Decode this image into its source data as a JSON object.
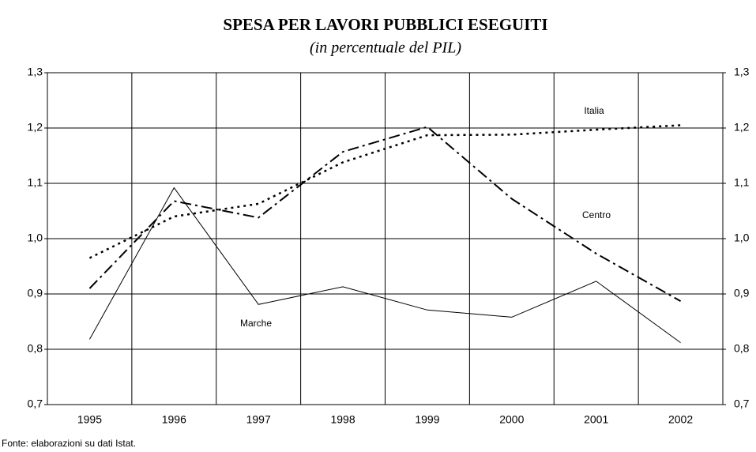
{
  "chart_data": {
    "type": "line",
    "title": "SPESA PER LAVORI PUBBLICI ESEGUITI",
    "subtitle": "(in percentuale del PIL)",
    "source": "Fonte: elaborazioni su dati Istat.",
    "categories": [
      "1995",
      "1996",
      "1997",
      "1998",
      "1999",
      "2000",
      "2001",
      "2002"
    ],
    "series": [
      {
        "name": "Italia",
        "color": "#000000",
        "values": [
          0.965,
          1.04,
          1.063,
          1.138,
          1.187,
          1.188,
          1.197,
          1.205
        ]
      },
      {
        "name": "Centro",
        "color": "#000000",
        "values": [
          0.91,
          1.068,
          1.038,
          1.157,
          1.202,
          1.072,
          0.973,
          0.887
        ]
      },
      {
        "name": "Marche",
        "color": "#000000",
        "values": [
          0.818,
          1.092,
          0.881,
          0.913,
          0.871,
          0.858,
          0.923,
          0.812
        ]
      }
    ],
    "ylim": [
      0.7,
      1.3
    ],
    "yticks": [
      {
        "value": 0.7,
        "label": "0,7"
      },
      {
        "value": 0.8,
        "label": "0,8"
      },
      {
        "value": 0.9,
        "label": "0,9"
      },
      {
        "value": 1.0,
        "label": "1,0"
      },
      {
        "value": 1.1,
        "label": "1,1"
      },
      {
        "value": 1.2,
        "label": "1,2"
      },
      {
        "value": 1.3,
        "label": "1,3"
      }
    ],
    "y2lim": [
      0.7,
      1.3
    ],
    "y2ticks": [
      {
        "value": 0.7,
        "label": "0,7"
      },
      {
        "value": 0.8,
        "label": "0,8"
      },
      {
        "value": 0.9,
        "label": "0,9"
      },
      {
        "value": 1.0,
        "label": "1,0"
      },
      {
        "value": 1.1,
        "label": "1,1"
      },
      {
        "value": 1.2,
        "label": "1,2"
      },
      {
        "value": 1.3,
        "label": "1,3"
      }
    ],
    "grid": true
  }
}
